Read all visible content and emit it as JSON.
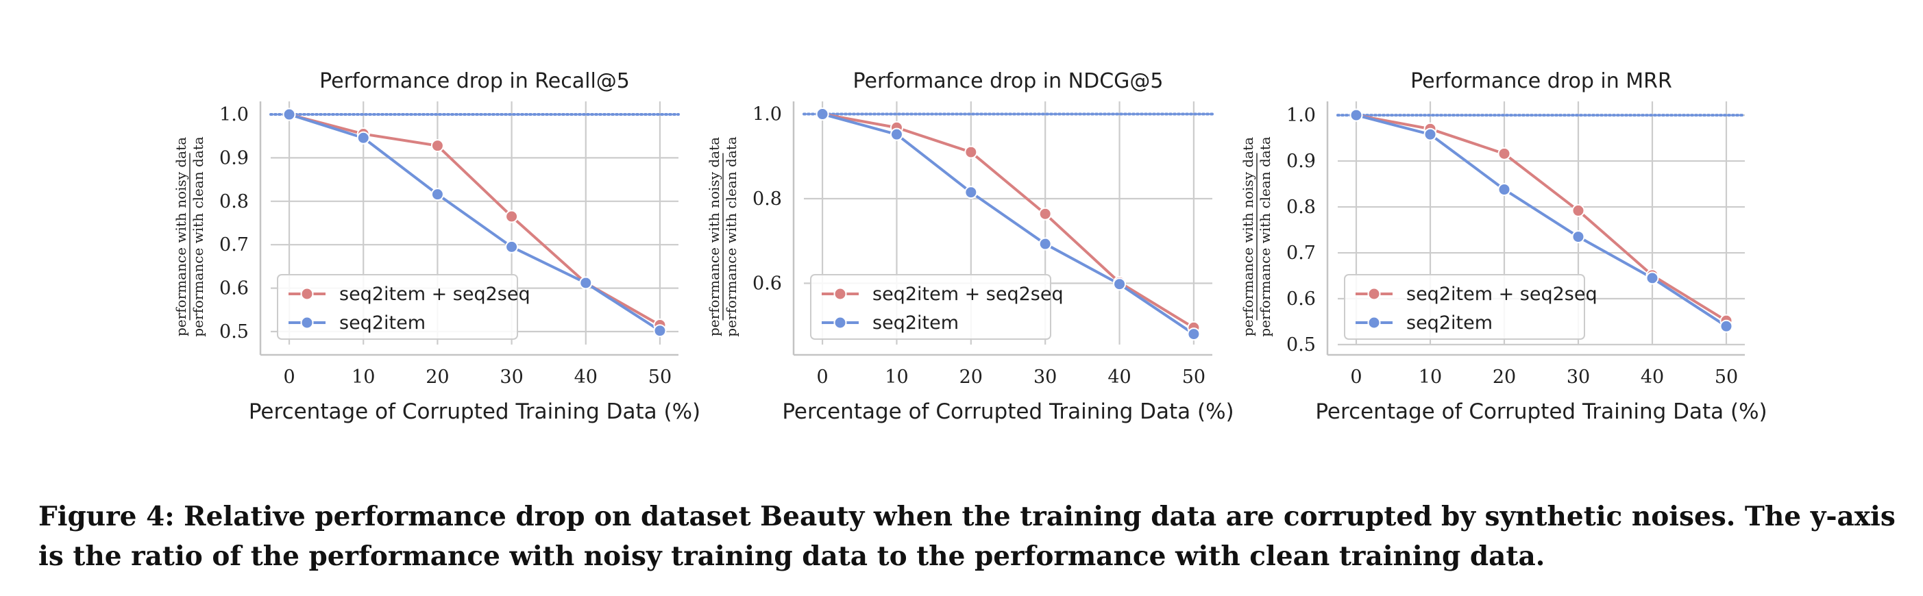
{
  "chart_data": [
    {
      "type": "line",
      "title": "Performance drop in Recall@5",
      "xlabel": "Percentage of Corrupted Training Data (%)",
      "ylabel_numerator": "performance with noisy data",
      "ylabel_denominator": "performance with clean data",
      "x": [
        0,
        10,
        20,
        30,
        40,
        50
      ],
      "xlim": [
        -2.5,
        52.5
      ],
      "ylim": [
        0.47,
        1.03
      ],
      "yticks": [
        0.5,
        0.6,
        0.7,
        0.8,
        0.9,
        1.0
      ],
      "ytick_labels": [
        "0.5",
        "0.6",
        "0.7",
        "0.8",
        "0.9",
        "1.0"
      ],
      "grid": true,
      "baseline": 1.0,
      "legend_position": "lower-left",
      "series": [
        {
          "name": "seq2item + seq2seq",
          "color": "#d98080",
          "values": [
            1.0,
            0.955,
            0.928,
            0.765,
            0.612,
            0.515
          ]
        },
        {
          "name": "seq2item",
          "color": "#6f92db",
          "values": [
            1.0,
            0.946,
            0.816,
            0.695,
            0.612,
            0.502
          ]
        }
      ]
    },
    {
      "type": "line",
      "title": "Performance drop in NDCG@5",
      "xlabel": "Percentage of Corrupted Training Data (%)",
      "ylabel_numerator": "performance with noisy data",
      "ylabel_denominator": "performance with clean data",
      "x": [
        0,
        10,
        20,
        30,
        40,
        50
      ],
      "xlim": [
        -2.5,
        52.5
      ],
      "ylim": [
        0.455,
        1.03
      ],
      "yticks": [
        0.6,
        0.8,
        1.0
      ],
      "ytick_labels": [
        "0.6",
        "0.8",
        "1.0"
      ],
      "grid": true,
      "baseline": 1.0,
      "legend_position": "lower-left",
      "series": [
        {
          "name": "seq2item + seq2seq",
          "color": "#d98080",
          "values": [
            1.0,
            0.968,
            0.91,
            0.764,
            0.602,
            0.495
          ]
        },
        {
          "name": "seq2item",
          "color": "#6f92db",
          "values": [
            1.0,
            0.952,
            0.815,
            0.693,
            0.598,
            0.48
          ]
        }
      ]
    },
    {
      "type": "line",
      "title": "Performance drop in MRR",
      "xlabel": "Percentage of Corrupted Training Data (%)",
      "ylabel_numerator": "performance with noisy data",
      "ylabel_denominator": "performance with clean data",
      "x": [
        0,
        10,
        20,
        30,
        40,
        50
      ],
      "xlim": [
        -2.5,
        52.5
      ],
      "ylim": [
        0.5,
        1.03
      ],
      "yticks": [
        0.5,
        0.6,
        0.7,
        0.8,
        0.9,
        1.0
      ],
      "ytick_labels": [
        "0.5",
        "0.6",
        "0.7",
        "0.8",
        "0.9",
        "1.0"
      ],
      "grid": true,
      "baseline": 1.0,
      "legend_position": "lower-left",
      "series": [
        {
          "name": "seq2item + seq2seq",
          "color": "#d98080",
          "values": [
            1.0,
            0.97,
            0.916,
            0.792,
            0.651,
            0.552
          ]
        },
        {
          "name": "seq2item",
          "color": "#6f92db",
          "values": [
            1.0,
            0.958,
            0.838,
            0.735,
            0.645,
            0.54
          ]
        }
      ]
    }
  ],
  "colors": {
    "grid": "#cccccc",
    "axis": "#c4c4c4",
    "baseline": "#6f92db"
  },
  "caption": "Figure 4: Relative performance drop on dataset Beauty when the training data are corrupted by synthetic noises. The y-axis is the ratio of the performance with noisy training data to the performance with clean training data."
}
